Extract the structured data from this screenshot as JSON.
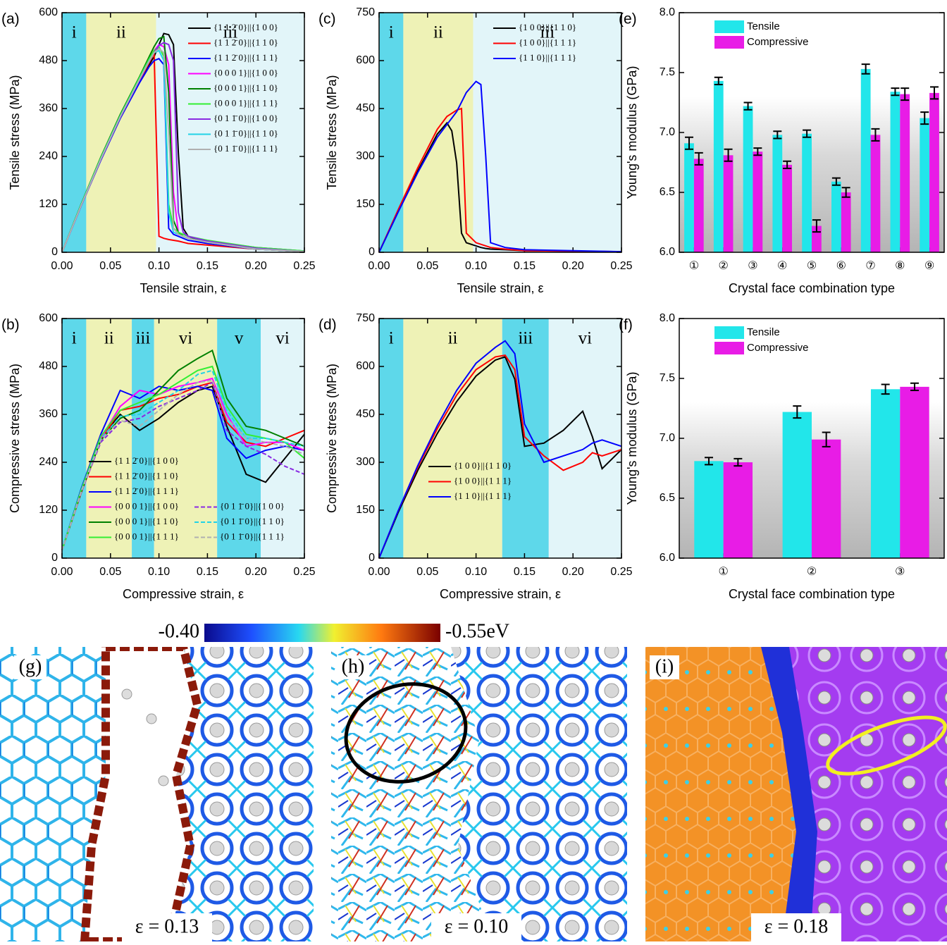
{
  "chart_data": [
    {
      "type": "line",
      "panel_label": "(a)",
      "xlabel": "Tensile strain, ε",
      "ylabel": "Tensile stress (MPa)",
      "xlim": [
        0,
        0.25
      ],
      "xticks": [
        {
          "value": 0,
          "label": "0.00"
        },
        0.05,
        {
          "value": 0.1,
          "label": "0.10"
        },
        0.15,
        {
          "value": 0.2,
          "label": "0.20"
        },
        0.25
      ],
      "ylim": [
        0,
        600
      ],
      "yticks": [
        0,
        120,
        240,
        360,
        480,
        600
      ],
      "legend": "upper right",
      "regions": [
        {
          "label": "i",
          "x": [
            0,
            0.025
          ],
          "color": "#5ed8ea"
        },
        {
          "label": "ii",
          "x": [
            0.025,
            0.097
          ],
          "color": "#eef2b6"
        },
        {
          "label": "iii",
          "x": [
            0.097,
            0.25
          ],
          "color": "#e2f5f9"
        }
      ],
      "x": [
        0,
        0.02,
        0.04,
        0.06,
        0.08,
        0.09,
        0.095,
        0.1,
        0.105,
        0.11,
        0.115,
        0.12,
        0.125,
        0.13,
        0.15,
        0.2,
        0.25
      ],
      "series": [
        {
          "name": "{1 1 2̄ 0}||{1 0 0}",
          "color": "#000000",
          "values": [
            0,
            120,
            235,
            340,
            430,
            470,
            490,
            520,
            548,
            545,
            520,
            250,
            60,
            40,
            25,
            8,
            2
          ]
        },
        {
          "name": "{1 1 2̄ 0}||{1 1 0}",
          "color": "#ff0000",
          "values": [
            0,
            120,
            235,
            340,
            430,
            475,
            500,
            40,
            35,
            32,
            30,
            28,
            25,
            22,
            18,
            8,
            2
          ]
        },
        {
          "name": "{1 1 2̄ 0}||{1 1 1}",
          "color": "#0000ff",
          "values": [
            0,
            118,
            230,
            335,
            425,
            465,
            480,
            485,
            470,
            60,
            45,
            40,
            35,
            30,
            22,
            8,
            2
          ]
        },
        {
          "name": "{0 0 0 1}||{1 0 0}",
          "color": "#ff00ff",
          "values": [
            0,
            120,
            235,
            340,
            435,
            480,
            505,
            520,
            515,
            470,
            150,
            50,
            40,
            35,
            25,
            10,
            2
          ]
        },
        {
          "name": "{0 0 0 1}||{1 1 0}",
          "color": "#008000",
          "values": [
            0,
            122,
            238,
            345,
            440,
            490,
            515,
            535,
            540,
            400,
            80,
            50,
            40,
            35,
            28,
            12,
            3
          ]
        },
        {
          "name": "{0 0 0 1}||{1 1 1}",
          "color": "#33ee33",
          "values": [
            0,
            121,
            236,
            342,
            438,
            485,
            505,
            515,
            490,
            120,
            60,
            50,
            45,
            40,
            30,
            12,
            3
          ]
        },
        {
          "name": "{0 1 1̄ 0}||{1 0 0}",
          "color": "#8a2be2",
          "values": [
            0,
            118,
            232,
            338,
            432,
            478,
            500,
            518,
            525,
            520,
            480,
            100,
            50,
            40,
            28,
            10,
            2
          ]
        },
        {
          "name": "{0 1 1̄ 0}||{1 1 0}",
          "color": "#22d3e6",
          "values": [
            0,
            120,
            234,
            340,
            434,
            480,
            500,
            505,
            480,
            100,
            50,
            45,
            40,
            35,
            25,
            8,
            2
          ]
        },
        {
          "name": "{0 1 1̄ 0}||{1 1 1}",
          "color": "#b0b0b0",
          "values": [
            0,
            119,
            233,
            339,
            433,
            479,
            500,
            510,
            500,
            300,
            60,
            45,
            40,
            35,
            25,
            8,
            2
          ]
        }
      ]
    },
    {
      "type": "line",
      "panel_label": "(b)",
      "xlabel": "Compressive strain, ε",
      "ylabel": "Compressive stress (MPa)",
      "xlim": [
        0,
        0.25
      ],
      "xticks": [
        {
          "value": 0,
          "label": "0.00"
        },
        0.05,
        {
          "value": 0.1,
          "label": "0.10"
        },
        0.15,
        {
          "value": 0.2,
          "label": "0.20"
        },
        0.25
      ],
      "ylim": [
        0,
        600
      ],
      "yticks": [
        0,
        120,
        240,
        360,
        480,
        600
      ],
      "legend": "lower left",
      "regions": [
        {
          "label": "i",
          "x": [
            0,
            0.025
          ],
          "color": "#5ed8ea"
        },
        {
          "label": "ii",
          "x": [
            0.025,
            0.072
          ],
          "color": "#eef2b6"
        },
        {
          "label": "iii",
          "x": [
            0.072,
            0.095
          ],
          "color": "#5ed8ea"
        },
        {
          "label": "vi",
          "x": [
            0.095,
            0.16
          ],
          "color": "#eef2b6"
        },
        {
          "label": "v",
          "x": [
            0.16,
            0.205
          ],
          "color": "#5ed8ea"
        },
        {
          "label": "vi",
          "x": [
            0.205,
            0.25
          ],
          "color": "#e2f5f9"
        }
      ],
      "x": [
        0,
        0.02,
        0.04,
        0.06,
        0.08,
        0.1,
        0.12,
        0.14,
        0.155,
        0.17,
        0.19,
        0.21,
        0.23,
        0.25
      ],
      "series": [
        {
          "name": "{1 1 2̄ 0}||{1 0 0}",
          "color": "#000000",
          "values": [
            20,
            170,
            300,
            360,
            320,
            350,
            390,
            420,
            430,
            330,
            210,
            190,
            250,
            310
          ]
        },
        {
          "name": "{1 1 2̄ 0}||{1 1 0}",
          "color": "#ff0000",
          "values": [
            20,
            165,
            295,
            370,
            380,
            400,
            410,
            430,
            440,
            340,
            290,
            280,
            300,
            320
          ]
        },
        {
          "name": "{1 1 2̄ 0}||{1 1 1}",
          "color": "#0000ff",
          "values": [
            20,
            175,
            310,
            420,
            400,
            430,
            420,
            430,
            420,
            300,
            250,
            270,
            280,
            270
          ]
        },
        {
          "name": "{0 0 0 1}||{1 0 0}",
          "color": "#ff00ff",
          "values": [
            20,
            170,
            300,
            380,
            420,
            410,
            430,
            440,
            450,
            360,
            280,
            290,
            290,
            270
          ]
        },
        {
          "name": "{0 0 0 1}||{1 1 0}",
          "color": "#008000",
          "values": [
            20,
            168,
            295,
            350,
            370,
            420,
            470,
            500,
            520,
            400,
            330,
            320,
            300,
            280
          ]
        },
        {
          "name": "{0 0 0 1}||{1 1 1}",
          "color": "#33ee33",
          "values": [
            20,
            172,
            305,
            370,
            390,
            410,
            440,
            470,
            480,
            380,
            310,
            300,
            290,
            250
          ]
        },
        {
          "name": "{0 1 1̄ 0}||{1 0 0}",
          "color": "#8a2be2",
          "dashed": true,
          "values": [
            20,
            166,
            290,
            340,
            350,
            380,
            400,
            420,
            440,
            320,
            280,
            260,
            230,
            210
          ]
        },
        {
          "name": "{0 1 1̄ 0}||{1 1 0}",
          "color": "#22d3e6",
          "dashed": true,
          "values": [
            20,
            169,
            298,
            355,
            360,
            390,
            420,
            460,
            470,
            370,
            300,
            300,
            290,
            280
          ]
        },
        {
          "name": "{0 1 1̄ 0}||{1 1 1}",
          "color": "#b0b0b0",
          "dashed": true,
          "values": [
            20,
            167,
            296,
            345,
            330,
            370,
            410,
            440,
            445,
            350,
            300,
            290,
            280,
            260
          ]
        }
      ]
    },
    {
      "type": "line",
      "panel_label": "(c)",
      "xlabel": "Tensile strain, ε",
      "ylabel": "Tensile stress (MPa)",
      "xlim": [
        0,
        0.25
      ],
      "xticks": [
        {
          "value": 0,
          "label": "0.00"
        },
        0.05,
        {
          "value": 0.1,
          "label": "0.10"
        },
        0.15,
        {
          "value": 0.2,
          "label": "0.20"
        },
        0.25
      ],
      "ylim": [
        0,
        750
      ],
      "yticks": [
        0,
        150,
        300,
        450,
        600,
        750
      ],
      "legend": "upper right",
      "regions": [
        {
          "label": "i",
          "x": [
            0,
            0.025
          ],
          "color": "#5ed8ea"
        },
        {
          "label": "ii",
          "x": [
            0.025,
            0.097
          ],
          "color": "#eef2b6"
        },
        {
          "label": "iii",
          "x": [
            0.097,
            0.25
          ],
          "color": "#e2f5f9"
        }
      ],
      "x": [
        0,
        0.02,
        0.04,
        0.06,
        0.07,
        0.075,
        0.08,
        0.085,
        0.09,
        0.1,
        0.105,
        0.11,
        0.115,
        0.13,
        0.15,
        0.25
      ],
      "series": [
        {
          "name": "{1 0 0}||{1 1 0}",
          "color": "#000000",
          "values": [
            0,
            130,
            255,
            370,
            405,
            380,
            280,
            60,
            30,
            20,
            15,
            12,
            10,
            8,
            5,
            2
          ]
        },
        {
          "name": "{1 0 0}||{1 1 1}",
          "color": "#ff0000",
          "values": [
            0,
            135,
            265,
            385,
            425,
            435,
            445,
            450,
            60,
            30,
            25,
            20,
            15,
            10,
            5,
            2
          ]
        },
        {
          "name": "{1 1 0}||{1 1 1}",
          "color": "#0000ff",
          "values": [
            0,
            128,
            250,
            360,
            400,
            420,
            440,
            470,
            500,
            535,
            525,
            300,
            30,
            15,
            8,
            2
          ]
        }
      ]
    },
    {
      "type": "line",
      "panel_label": "(d)",
      "xlabel": "Compressive strain, ε",
      "ylabel": "Compressive stress (MPa)",
      "xlim": [
        0,
        0.25
      ],
      "xticks": [
        {
          "value": 0,
          "label": "0.00"
        },
        0.05,
        {
          "value": 0.1,
          "label": "0.10"
        },
        0.15,
        {
          "value": 0.2,
          "label": "0.20"
        },
        0.25
      ],
      "ylim": [
        0,
        750
      ],
      "yticks": [
        0,
        150,
        300,
        450,
        600,
        750
      ],
      "legend": "lower left",
      "regions": [
        {
          "label": "i",
          "x": [
            0,
            0.025
          ],
          "color": "#5ed8ea"
        },
        {
          "label": "ii",
          "x": [
            0.025,
            0.127
          ],
          "color": "#eef2b6"
        },
        {
          "label": "iii",
          "x": [
            0.127,
            0.175
          ],
          "color": "#5ed8ea"
        },
        {
          "label": "vi",
          "x": [
            0.175,
            0.25
          ],
          "color": "#e2f5f9"
        }
      ],
      "x": [
        0,
        0.02,
        0.04,
        0.06,
        0.08,
        0.1,
        0.12,
        0.13,
        0.14,
        0.15,
        0.17,
        0.19,
        0.21,
        0.22,
        0.23,
        0.25
      ],
      "series": [
        {
          "name": "{1 0 0}||{1 1 0}",
          "color": "#000000",
          "values": [
            0,
            145,
            275,
            390,
            490,
            570,
            620,
            630,
            560,
            350,
            360,
            400,
            460,
            380,
            280,
            340
          ]
        },
        {
          "name": "{1 0 0}||{1 1 1}",
          "color": "#ff0000",
          "values": [
            0,
            150,
            285,
            405,
            510,
            590,
            630,
            635,
            590,
            380,
            320,
            275,
            300,
            330,
            320,
            340
          ]
        },
        {
          "name": "{1 1 0}||{1 1 1}",
          "color": "#0000ff",
          "values": [
            0,
            150,
            290,
            415,
            525,
            610,
            660,
            680,
            640,
            420,
            300,
            320,
            340,
            360,
            370,
            350
          ]
        }
      ]
    },
    {
      "type": "bar",
      "panel_label": "(e)",
      "xlabel": "Crystal face combination type",
      "ylabel": "Young's modulus (GPa)",
      "categories": [
        "①",
        "②",
        "③",
        "④",
        "⑤",
        "⑥",
        "⑦",
        "⑧",
        "⑨"
      ],
      "ylim": [
        6,
        8
      ],
      "yticks": [
        {
          "value": 6,
          "label": "6.0"
        },
        6.5,
        {
          "value": 7,
          "label": "7.0"
        },
        7.5,
        {
          "value": 8,
          "label": "8.0"
        }
      ],
      "legend": "upper left",
      "series": [
        {
          "name": "Tensile",
          "color": "#22e6ea",
          "values": [
            6.91,
            7.43,
            7.22,
            6.98,
            6.99,
            6.59,
            7.53,
            7.34,
            7.12
          ],
          "errors": [
            0.05,
            0.03,
            0.03,
            0.03,
            0.03,
            0.03,
            0.04,
            0.03,
            0.05
          ]
        },
        {
          "name": "Compressive",
          "color": "#e81ce6",
          "values": [
            6.78,
            6.81,
            6.84,
            6.73,
            6.22,
            6.5,
            6.98,
            7.32,
            7.33
          ],
          "errors": [
            0.05,
            0.05,
            0.03,
            0.03,
            0.05,
            0.04,
            0.05,
            0.05,
            0.05
          ]
        }
      ]
    },
    {
      "type": "bar",
      "panel_label": "(f)",
      "xlabel": "Crystal face combination type",
      "ylabel": "Young's modulus (GPa)",
      "categories": [
        "①",
        "②",
        "③"
      ],
      "ylim": [
        6,
        8
      ],
      "yticks": [
        {
          "value": 6,
          "label": "6.0"
        },
        6.5,
        {
          "value": 7,
          "label": "7.0"
        },
        7.5,
        {
          "value": 8,
          "label": "8.0"
        }
      ],
      "legend": "upper left",
      "series": [
        {
          "name": "Tensile",
          "color": "#22e6ea",
          "values": [
            6.81,
            7.22,
            7.41
          ],
          "errors": [
            0.03,
            0.05,
            0.04
          ]
        },
        {
          "name": "Compressive",
          "color": "#e81ce6",
          "values": [
            6.8,
            6.99,
            7.43
          ],
          "errors": [
            0.03,
            0.06,
            0.03
          ]
        }
      ]
    }
  ],
  "colorbar": {
    "min_label": "-0.40",
    "max_label": "-0.55eV"
  },
  "figures": [
    {
      "label": "(g)",
      "strain": "ε = 0.13"
    },
    {
      "label": "(h)",
      "strain": "ε = 0.10"
    },
    {
      "label": "(i)",
      "strain": "ε = 0.18"
    }
  ]
}
